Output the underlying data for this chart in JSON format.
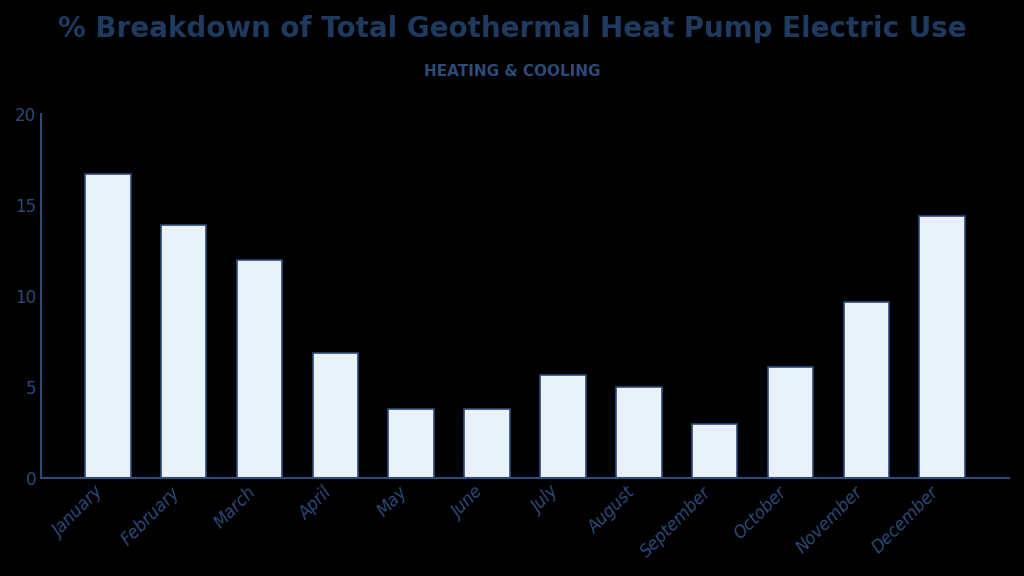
{
  "title": "% Breakdown of Total Geothermal Heat Pump Electric Use",
  "subtitle": "HEATING & COOLING",
  "categories": [
    "January",
    "February",
    "March",
    "April",
    "May",
    "June",
    "July",
    "August",
    "September",
    "October",
    "November",
    "December"
  ],
  "values": [
    16.7,
    13.9,
    12.0,
    6.9,
    3.8,
    3.8,
    5.7,
    5.0,
    3.0,
    6.1,
    9.7,
    14.4
  ],
  "bar_fill_color": "#e8f2f8",
  "bar_edge_color": "#2d4a7a",
  "axis_color": "#2d4a7a",
  "title_color": "#1e3a5f",
  "subtitle_color": "#2d4a7a",
  "background_color": "#000000",
  "plot_bg_color": "#000000",
  "ylim": [
    0,
    20
  ],
  "yticks": [
    0,
    5,
    10,
    15,
    20
  ],
  "title_fontsize": 20,
  "subtitle_fontsize": 11,
  "tick_fontsize": 12
}
